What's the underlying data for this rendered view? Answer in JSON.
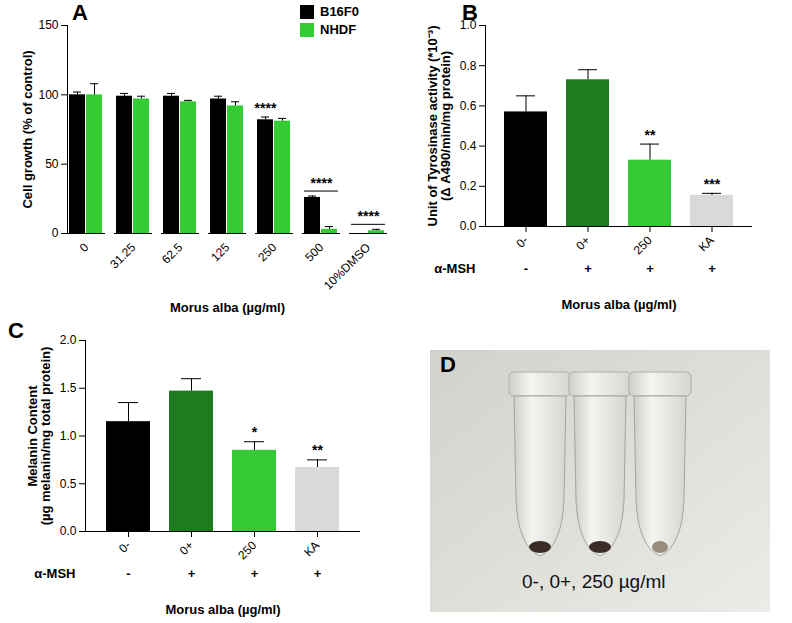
{
  "chart_data": [
    {
      "panel_label": "A",
      "type": "bar",
      "categories": [
        "0",
        "31.25",
        "62.5",
        "125",
        "250",
        "500",
        "10%DMSO"
      ],
      "series": [
        {
          "name": "B16F0",
          "color": "#000000",
          "values": [
            100,
            99,
            99,
            97,
            82,
            26,
            0
          ],
          "errors": [
            2,
            2,
            2,
            2,
            2,
            1,
            0
          ]
        },
        {
          "name": "NHDF",
          "color": "#33cc33",
          "values": [
            100,
            97,
            95,
            92,
            81,
            3,
            2
          ],
          "errors": [
            8,
            2,
            1,
            3,
            2,
            2,
            1
          ]
        }
      ],
      "x_label": "Morus alba (µg/ml)",
      "y_label": "Cell growth (% of control)",
      "ylim": [
        0,
        150
      ],
      "yticks": [
        0,
        50,
        100,
        150
      ],
      "legend": "top-right",
      "annotations": [
        {
          "category": "250",
          "series": "B16F0",
          "text": "****"
        },
        {
          "category": "500",
          "series": [
            "B16F0",
            "NHDF"
          ],
          "text": "****"
        },
        {
          "category": "10%DMSO",
          "series": [
            "B16F0",
            "NHDF"
          ],
          "text": "****"
        }
      ]
    },
    {
      "panel_label": "B",
      "type": "bar",
      "categories": [
        "0-",
        "0+",
        "250",
        "KA"
      ],
      "values": [
        0.57,
        0.73,
        0.33,
        0.155
      ],
      "errors": [
        0.08,
        0.05,
        0.08,
        0.01
      ],
      "colors": [
        "#000000",
        "#1e7b1e",
        "#36c936",
        "#d9d9d9"
      ],
      "row_label": "α-MSH",
      "row_values": [
        "-",
        "+",
        "+",
        "+"
      ],
      "x_label": "Morus alba (µg/ml)",
      "y_label": "Unit of Tyrosinase activity (*10⁻³)\n(Δ A490/min/mg protein)",
      "ylim": [
        0,
        1.0
      ],
      "yticks": [
        {
          "value": 0,
          "label": "0.0"
        },
        0.2,
        0.4,
        0.6,
        0.8,
        {
          "value": 1.0,
          "label": "1.0"
        }
      ],
      "annotations": [
        {
          "category": "250",
          "text": "**"
        },
        {
          "category": "KA",
          "text": "***"
        }
      ]
    },
    {
      "panel_label": "C",
      "type": "bar",
      "categories": [
        "0-",
        "0+",
        "250",
        "KA"
      ],
      "values": [
        1.15,
        1.47,
        0.85,
        0.67
      ],
      "errors": [
        0.2,
        0.13,
        0.09,
        0.08
      ],
      "colors": [
        "#000000",
        "#1e7b1e",
        "#36c936",
        "#d9d9d9"
      ],
      "row_label": "α-MSH",
      "row_values": [
        "-",
        "+",
        "+",
        "+"
      ],
      "x_label": "Morus alba (µg/ml)",
      "y_label": "Melanin Content\n(µg melanin/mg total protein)",
      "ylim": [
        0,
        2.0
      ],
      "yticks": [
        {
          "value": 0,
          "label": "0.0"
        },
        0.5,
        {
          "value": 1.0,
          "label": "1.0"
        },
        1.5,
        {
          "value": 2.0,
          "label": "2.0"
        }
      ],
      "annotations": [
        {
          "category": "250",
          "text": "*"
        },
        {
          "category": "KA",
          "text": "**"
        }
      ]
    }
  ],
  "photo": {
    "panel_label": "D",
    "label": "0-, 0+, 250 µg/ml"
  }
}
